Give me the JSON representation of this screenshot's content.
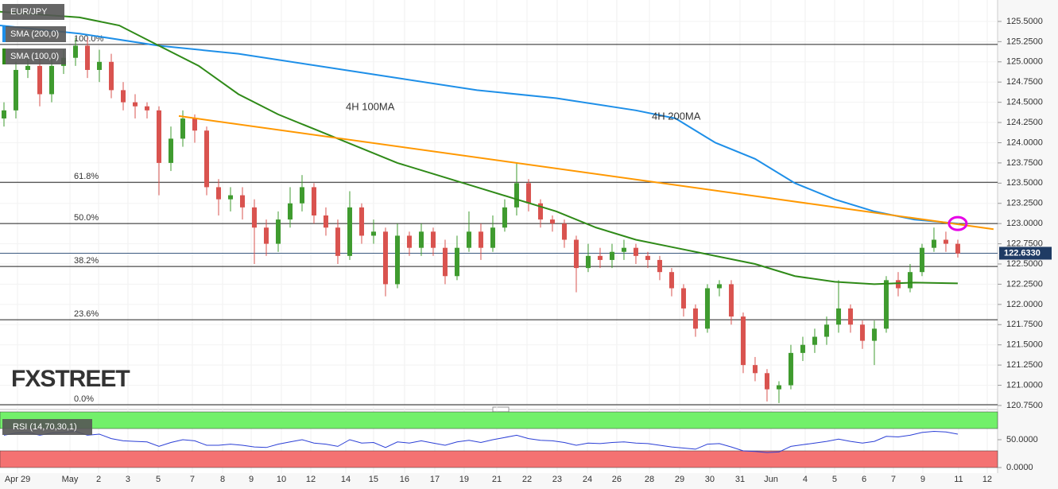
{
  "chart_data": [
    {
      "type": "candlestick",
      "legend": [
        "EUR/JPY",
        "SMA (200,0)",
        "SMA (100,0)"
      ],
      "open": [
        124.3,
        124.4,
        124.9,
        124.95,
        124.6,
        124.95,
        125.05,
        125.2,
        124.9,
        125.0,
        124.65,
        124.5,
        124.45,
        124.4,
        123.75,
        124.05,
        124.3,
        124.15,
        123.45,
        123.3,
        123.35,
        123.2,
        122.95,
        122.75,
        123.05,
        123.25,
        123.45,
        123.1,
        122.95,
        122.6,
        123.2,
        122.85,
        122.9,
        122.25,
        122.85,
        122.7,
        122.9,
        122.7,
        122.35,
        122.7,
        122.9,
        122.7,
        122.95,
        123.2,
        123.5,
        123.25,
        123.05,
        123.0,
        122.8,
        122.45,
        122.6,
        122.55,
        122.65,
        122.7,
        122.6,
        122.55,
        122.4,
        122.2,
        121.95,
        121.7,
        122.2,
        122.25,
        121.85,
        121.25,
        121.15,
        120.95,
        121.0,
        121.4,
        121.5,
        121.6,
        121.75,
        121.95,
        121.75,
        121.55,
        121.7,
        122.3,
        122.2,
        122.4,
        122.7,
        122.8,
        122.75
      ],
      "high": [
        124.5,
        125.0,
        125.05,
        125.05,
        125.05,
        125.15,
        125.3,
        125.3,
        125.15,
        125.1,
        124.75,
        124.6,
        124.5,
        124.45,
        124.2,
        124.4,
        124.35,
        124.2,
        123.55,
        123.45,
        123.45,
        123.3,
        123.05,
        123.15,
        123.45,
        123.6,
        123.5,
        123.2,
        123.05,
        123.4,
        123.25,
        123.05,
        122.95,
        123.0,
        122.9,
        123.0,
        122.95,
        122.8,
        122.85,
        123.15,
        123.0,
        123.1,
        123.3,
        123.75,
        123.55,
        123.3,
        123.1,
        123.05,
        122.85,
        122.75,
        122.7,
        122.75,
        122.8,
        122.75,
        122.65,
        122.6,
        122.45,
        122.25,
        122.0,
        122.25,
        122.3,
        122.3,
        121.9,
        121.35,
        121.2,
        121.05,
        121.5,
        121.6,
        121.7,
        121.85,
        122.3,
        122.0,
        121.8,
        121.8,
        122.35,
        122.4,
        122.5,
        122.75,
        122.95,
        122.9,
        122.8
      ],
      "low": [
        124.2,
        124.3,
        124.8,
        124.45,
        124.5,
        124.85,
        124.95,
        124.8,
        124.75,
        124.55,
        124.4,
        124.3,
        124.3,
        123.35,
        123.65,
        123.95,
        124.0,
        123.35,
        123.1,
        123.15,
        123.05,
        122.5,
        122.6,
        122.65,
        122.95,
        123.15,
        123.0,
        122.85,
        122.5,
        122.55,
        122.75,
        122.75,
        122.1,
        122.2,
        122.6,
        122.6,
        122.6,
        122.25,
        122.3,
        122.65,
        122.55,
        122.65,
        122.9,
        123.1,
        123.15,
        122.95,
        122.9,
        122.7,
        122.15,
        122.4,
        122.45,
        122.45,
        122.55,
        122.5,
        122.45,
        122.3,
        122.1,
        121.85,
        121.6,
        121.65,
        122.1,
        121.75,
        121.15,
        121.05,
        120.8,
        120.78,
        120.95,
        121.3,
        121.4,
        121.5,
        121.65,
        121.65,
        121.45,
        121.25,
        121.65,
        122.1,
        122.15,
        122.35,
        122.65,
        122.65,
        122.58
      ],
      "close": [
        124.4,
        124.9,
        124.95,
        124.6,
        124.95,
        125.05,
        125.2,
        124.9,
        125.0,
        124.65,
        124.5,
        124.45,
        124.4,
        123.75,
        124.05,
        124.3,
        124.15,
        123.45,
        123.3,
        123.35,
        123.2,
        122.95,
        122.75,
        123.05,
        123.25,
        123.45,
        123.1,
        122.95,
        122.6,
        123.2,
        122.85,
        122.9,
        122.25,
        122.85,
        122.7,
        122.9,
        122.7,
        122.35,
        122.7,
        122.9,
        122.7,
        122.95,
        123.2,
        123.5,
        123.25,
        123.05,
        123.0,
        122.8,
        122.45,
        122.6,
        122.55,
        122.65,
        122.7,
        122.6,
        122.55,
        122.4,
        122.2,
        121.95,
        121.7,
        122.2,
        122.25,
        121.85,
        121.25,
        121.15,
        120.95,
        121.0,
        121.4,
        121.5,
        121.6,
        121.75,
        121.95,
        121.75,
        121.55,
        121.7,
        122.3,
        122.2,
        122.4,
        122.7,
        122.8,
        122.75,
        122.63
      ],
      "up_color": "#3f9b2f",
      "down_color": "#d9534f",
      "xlim": [
        0,
        83.67
      ],
      "xticks": [
        {
          "value": 1.47,
          "label": "Apr 29"
        },
        {
          "value": 5.87,
          "label": "May"
        },
        {
          "value": 8.27,
          "label": "2"
        },
        {
          "value": 10.73,
          "label": "3"
        },
        {
          "value": 13.27,
          "label": "5"
        },
        {
          "value": 16.13,
          "label": "7"
        },
        {
          "value": 18.67,
          "label": "8"
        },
        {
          "value": 21.07,
          "label": "9"
        },
        {
          "value": 23.6,
          "label": "10"
        },
        {
          "value": 26.07,
          "label": "12"
        },
        {
          "value": 29,
          "label": "14"
        },
        {
          "value": 31.33,
          "label": "15"
        },
        {
          "value": 33.93,
          "label": "16"
        },
        {
          "value": 36.47,
          "label": "17"
        },
        {
          "value": 38.93,
          "label": "19"
        },
        {
          "value": 41.67,
          "label": "21"
        },
        {
          "value": 44.2,
          "label": "22"
        },
        {
          "value": 46.73,
          "label": "23"
        },
        {
          "value": 49.27,
          "label": "24"
        },
        {
          "value": 51.73,
          "label": "26"
        },
        {
          "value": 54.47,
          "label": "28"
        },
        {
          "value": 57,
          "label": "29"
        },
        {
          "value": 59.53,
          "label": "30"
        },
        {
          "value": 62.07,
          "label": "31"
        },
        {
          "value": 64.67,
          "label": "Jun"
        },
        {
          "value": 67.53,
          "label": "4"
        },
        {
          "value": 70,
          "label": "5"
        },
        {
          "value": 72.47,
          "label": "6"
        },
        {
          "value": 74.93,
          "label": "7"
        },
        {
          "value": 77.4,
          "label": "9"
        },
        {
          "value": 80.4,
          "label": "11"
        },
        {
          "value": 82.8,
          "label": "12"
        }
      ],
      "ylim": [
        120.73,
        125.765
      ],
      "yticks": [
        {
          "value": 120.75,
          "label": "120.7500"
        },
        {
          "value": 121,
          "label": "121.0000"
        },
        {
          "value": 121.25,
          "label": "121.2500"
        },
        {
          "value": 121.5,
          "label": "121.5000"
        },
        {
          "value": 121.75,
          "label": "121.7500"
        },
        {
          "value": 122,
          "label": "122.0000"
        },
        {
          "value": 122.25,
          "label": "122.2500"
        },
        {
          "value": 122.5,
          "label": "122.5000"
        },
        {
          "value": 122.75,
          "label": "122.7500"
        },
        {
          "value": 123,
          "label": "123.0000"
        },
        {
          "value": 123.25,
          "label": "123.2500"
        },
        {
          "value": 123.5,
          "label": "123.5000"
        },
        {
          "value": 123.75,
          "label": "123.7500"
        },
        {
          "value": 124,
          "label": "124.0000"
        },
        {
          "value": 124.25,
          "label": "124.2500"
        },
        {
          "value": 124.5,
          "label": "124.5000"
        },
        {
          "value": 124.75,
          "label": "124.7500"
        },
        {
          "value": 125,
          "label": "125.0000"
        },
        {
          "value": 125.25,
          "label": "125.2500"
        },
        {
          "value": 125.5,
          "label": "125.5000"
        }
      ],
      "grid": true,
      "levels": [
        {
          "label": "100.0%",
          "value": 125.215
        },
        {
          "label": "61.8%",
          "value": 123.51
        },
        {
          "label": "50.0%",
          "value": 123.0
        },
        {
          "label": "38.2%",
          "value": 122.47
        },
        {
          "label": "23.6%",
          "value": 121.81
        },
        {
          "label": "0.0%",
          "value": 120.76
        }
      ],
      "last_price": {
        "value": 122.633,
        "label": "122.6330"
      },
      "series": [
        {
          "name": "4H 200MA",
          "color": "#1e8fe8",
          "x": [
            0,
            6.67,
            13.33,
            20,
            26.67,
            33.33,
            40,
            46.67,
            53.33,
            56.67,
            60,
            63.33,
            66.67,
            70,
            73.33,
            76.67,
            80.33
          ],
          "values": [
            125.45,
            125.35,
            125.2,
            125.1,
            124.95,
            124.8,
            124.65,
            124.55,
            124.4,
            124.3,
            124.0,
            123.8,
            123.5,
            123.3,
            123.15,
            123.05,
            123.0
          ]
        },
        {
          "name": "4H 100MA",
          "color": "#2f8a18",
          "x": [
            0,
            6.67,
            10,
            13.33,
            16.67,
            20,
            23.33,
            26.67,
            30,
            33.33,
            36.67,
            40,
            43.33,
            46.67,
            50,
            53.33,
            56.67,
            60,
            63.33,
            66.67,
            70,
            73.33,
            76.67,
            80.33
          ],
          "values": [
            125.62,
            125.55,
            125.45,
            125.2,
            124.95,
            124.6,
            124.35,
            124.15,
            123.95,
            123.75,
            123.6,
            123.45,
            123.3,
            123.15,
            122.95,
            122.8,
            122.7,
            122.6,
            122.5,
            122.35,
            122.28,
            122.25,
            122.27,
            122.26
          ]
        }
      ],
      "trendline": {
        "color": "#ff9800",
        "x": [
          15,
          83.33
        ],
        "y": [
          124.33,
          122.93
        ]
      },
      "highlight": {
        "color": "#e600e6",
        "x": 80.33,
        "y": 123.0
      },
      "watermark": "FXSTREET"
    },
    {
      "type": "line",
      "title": "RSI (14,70,30,1)",
      "color": "#2b3fd6",
      "values": [
        58,
        62,
        63,
        58,
        62,
        63,
        65,
        58,
        60,
        52,
        48,
        47,
        46,
        38,
        45,
        50,
        48,
        40,
        40,
        42,
        40,
        37,
        36,
        42,
        46,
        50,
        44,
        42,
        38,
        50,
        44,
        45,
        36,
        46,
        44,
        48,
        44,
        40,
        46,
        49,
        45,
        50,
        54,
        58,
        52,
        49,
        48,
        45,
        40,
        44,
        43,
        45,
        46,
        44,
        43,
        40,
        37,
        35,
        33,
        42,
        43,
        37,
        30,
        29,
        27,
        28,
        38,
        41,
        44,
        47,
        51,
        47,
        44,
        47,
        56,
        55,
        58,
        63,
        65,
        64,
        60
      ],
      "ylim": [
        0,
        100
      ],
      "yticks": [
        {
          "value": 0,
          "label": "0.0000"
        },
        {
          "value": 50,
          "label": "50.0000"
        }
      ],
      "bands": [
        {
          "from": 70,
          "to": 100,
          "color": "#72f06a"
        },
        {
          "from": 0,
          "to": 30,
          "color": "#f47272"
        }
      ]
    }
  ]
}
